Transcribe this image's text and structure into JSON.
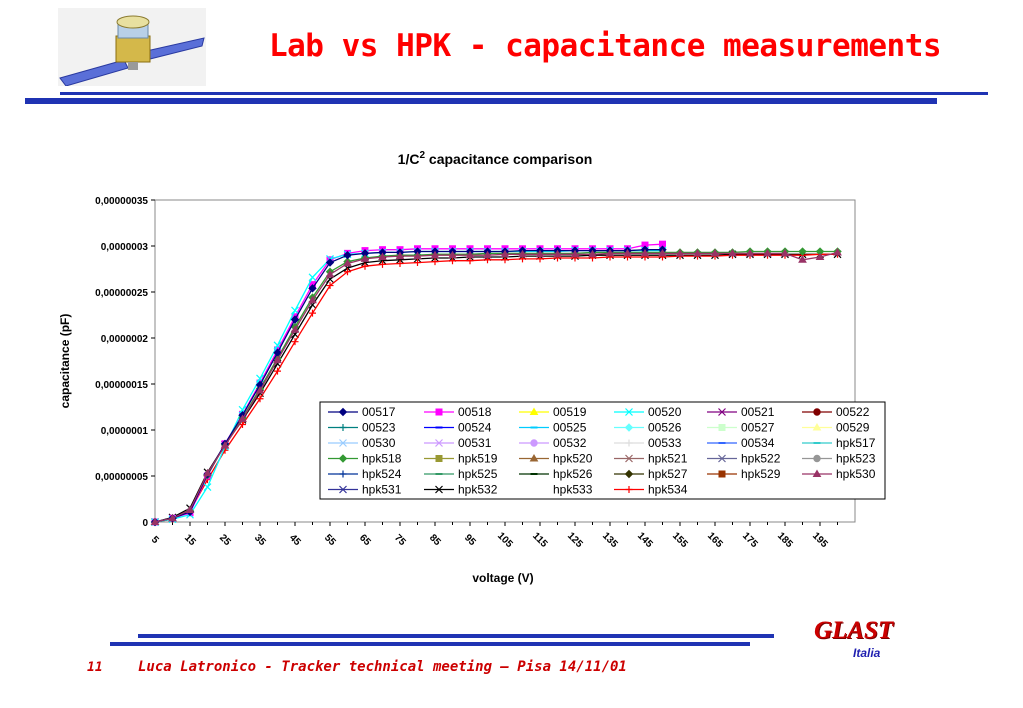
{
  "slide": {
    "title": "Lab vs HPK - capacitance measurements",
    "page_number": "11",
    "footer": "Luca Latronico - Tracker technical meeting – Pisa 14/11/01",
    "logo_main": "GLAST",
    "logo_sub": "Italia",
    "satellite_icon": "satellite-icon",
    "colors": {
      "title": "#ff0000",
      "rule": "#1f33b3",
      "footer": "#cc0000",
      "logo_sub": "#1f1fb0"
    }
  },
  "chart_data": {
    "type": "line",
    "title": "1/C",
    "title_superscript": "2",
    "title_suffix": " capacitance comparison",
    "xlabel": "voltage (V)",
    "ylabel": "capacitance (pF)",
    "x_tick_labels": [
      "5",
      "15",
      "25",
      "35",
      "45",
      "55",
      "65",
      "75",
      "85",
      "95",
      "105",
      "115",
      "125",
      "135",
      "145",
      "155",
      "165",
      "175",
      "185",
      "195"
    ],
    "y_tick_labels": [
      "0",
      "0,00000005",
      "0,0000001",
      "0,00000015",
      "0,0000002",
      "0,00000025",
      "0,0000003",
      "0,00000035"
    ],
    "xlim": [
      5,
      205
    ],
    "ylim": [
      0,
      3.5e-07
    ],
    "grid": false,
    "legend_position": "bottom-right, inside plot",
    "legend_columns": 6,
    "series": [
      {
        "name": "00517",
        "color": "#000080",
        "marker": "diamond",
        "filled": true,
        "end": 150
      },
      {
        "name": "00518",
        "color": "#ff00ff",
        "marker": "square",
        "filled": true,
        "end": 150
      },
      {
        "name": "00519",
        "color": "#ffff00",
        "marker": "triangle",
        "filled": true,
        "end": 150
      },
      {
        "name": "00520",
        "color": "#00ffff",
        "marker": "x",
        "filled": false,
        "end": 150
      },
      {
        "name": "00521",
        "color": "#800080",
        "marker": "x",
        "filled": false,
        "end": 150
      },
      {
        "name": "00522",
        "color": "#800000",
        "marker": "circle",
        "filled": true,
        "end": 200
      },
      {
        "name": "00523",
        "color": "#008080",
        "marker": "plus",
        "filled": false,
        "end": 200
      },
      {
        "name": "00524",
        "color": "#0000ff",
        "marker": "dash",
        "filled": false,
        "end": 200
      },
      {
        "name": "00525",
        "color": "#00ccff",
        "marker": "dash",
        "filled": false,
        "end": 200
      },
      {
        "name": "00526",
        "color": "#66ffff",
        "marker": "diamond",
        "filled": true,
        "end": 200
      },
      {
        "name": "00527",
        "color": "#ccffcc",
        "marker": "square",
        "filled": true,
        "end": 200
      },
      {
        "name": "00529",
        "color": "#ffff99",
        "marker": "triangle",
        "filled": true,
        "end": 200
      },
      {
        "name": "00530",
        "color": "#99ccff",
        "marker": "x",
        "filled": false,
        "end": 200
      },
      {
        "name": "00531",
        "color": "#cc99ff",
        "marker": "x",
        "filled": false,
        "end": 200
      },
      {
        "name": "00532",
        "color": "#cc99ff",
        "marker": "circle",
        "filled": true,
        "end": 200
      },
      {
        "name": "00533",
        "color": "#dddddd",
        "marker": "plus",
        "filled": false,
        "end": 200
      },
      {
        "name": "00534",
        "color": "#3366ff",
        "marker": "dash",
        "filled": false,
        "end": 200
      },
      {
        "name": "hpk517",
        "color": "#33cccc",
        "marker": "dash",
        "filled": false,
        "end": 200
      },
      {
        "name": "hpk518",
        "color": "#339933",
        "marker": "diamond",
        "filled": true,
        "end": 200
      },
      {
        "name": "hpk519",
        "color": "#999933",
        "marker": "square",
        "filled": true,
        "end": 200
      },
      {
        "name": "hpk520",
        "color": "#996633",
        "marker": "triangle",
        "filled": true,
        "end": 200
      },
      {
        "name": "hpk521",
        "color": "#996666",
        "marker": "x",
        "filled": false,
        "end": 200
      },
      {
        "name": "hpk522",
        "color": "#666699",
        "marker": "x",
        "filled": false,
        "end": 200
      },
      {
        "name": "hpk523",
        "color": "#969696",
        "marker": "circle",
        "filled": true,
        "end": 200
      },
      {
        "name": "hpk524",
        "color": "#003399",
        "marker": "plus",
        "filled": false,
        "end": 200
      },
      {
        "name": "hpk525",
        "color": "#339966",
        "marker": "dash",
        "filled": false,
        "end": 200
      },
      {
        "name": "hpk526",
        "color": "#003300",
        "marker": "dash",
        "filled": false,
        "end": 200
      },
      {
        "name": "hpk527",
        "color": "#333300",
        "marker": "diamond",
        "filled": true,
        "end": 200
      },
      {
        "name": "hpk529",
        "color": "#993300",
        "marker": "square",
        "filled": true,
        "end": 200
      },
      {
        "name": "hpk530",
        "color": "#993366",
        "marker": "triangle",
        "filled": true,
        "end": 200
      },
      {
        "name": "hpk531",
        "color": "#333399",
        "marker": "x",
        "filled": false,
        "end": 200
      },
      {
        "name": "hpk532",
        "color": "#000000",
        "marker": "x",
        "filled": false,
        "end": 200
      },
      {
        "name": "hpk533",
        "color": "#ffffff",
        "marker": "none",
        "filled": false,
        "end": 200
      },
      {
        "name": "hpk534",
        "color": "#ff0000",
        "marker": "plus",
        "filled": false,
        "end": 200
      }
    ],
    "shown_series": [
      {
        "name": "hpk532",
        "x": [
          5,
          10,
          15,
          20,
          25,
          30,
          35,
          40,
          45,
          50,
          55,
          60,
          65,
          70,
          75,
          80,
          85,
          90,
          95,
          100,
          105,
          110,
          115,
          120,
          125,
          130,
          135,
          140,
          145,
          150,
          155,
          160,
          165,
          170,
          175,
          180,
          185,
          190,
          195,
          200
        ],
        "y": [
          0,
          5e-09,
          1.5e-08,
          5.4e-08,
          8.4e-08,
          1.11e-07,
          1.4e-07,
          1.72e-07,
          2.04e-07,
          2.36e-07,
          2.64e-07,
          2.76e-07,
          2.82e-07,
          2.84e-07,
          2.85e-07,
          2.86e-07,
          2.87e-07,
          2.87e-07,
          2.88e-07,
          2.88e-07,
          2.88e-07,
          2.89e-07,
          2.89e-07,
          2.89e-07,
          2.89e-07,
          2.9e-07,
          2.9e-07,
          2.9e-07,
          2.9e-07,
          2.9e-07,
          2.9e-07,
          2.9e-07,
          2.9e-07,
          2.91e-07,
          2.91e-07,
          2.91e-07,
          2.91e-07,
          2.91e-07,
          2.91e-07,
          2.91e-07
        ]
      },
      {
        "name": "hpk534",
        "x": [
          5,
          10,
          15,
          20,
          25,
          30,
          35,
          40,
          45,
          50,
          55,
          60,
          65,
          70,
          75,
          80,
          85,
          90,
          95,
          100,
          105,
          110,
          115,
          120,
          125,
          130,
          135,
          140,
          145,
          150,
          155,
          160,
          165,
          170,
          175,
          180,
          185,
          190,
          195,
          200
        ],
        "y": [
          0,
          3e-09,
          1.2e-08,
          4.6e-08,
          7.8e-08,
          1.06e-07,
          1.34e-07,
          1.64e-07,
          1.96e-07,
          2.27e-07,
          2.57e-07,
          2.72e-07,
          2.78e-07,
          2.8e-07,
          2.81e-07,
          2.82e-07,
          2.83e-07,
          2.84e-07,
          2.84e-07,
          2.85e-07,
          2.85e-07,
          2.86e-07,
          2.86e-07,
          2.87e-07,
          2.87e-07,
          2.87e-07,
          2.88e-07,
          2.88e-07,
          2.88e-07,
          2.88e-07,
          2.89e-07,
          2.89e-07,
          2.89e-07,
          2.9e-07,
          2.9e-07,
          2.9e-07,
          2.9e-07,
          2.9e-07,
          2.91e-07,
          2.91e-07
        ]
      },
      {
        "name": "00518",
        "x": [
          5,
          10,
          15,
          20,
          25,
          30,
          35,
          40,
          45,
          50,
          55,
          60,
          65,
          70,
          75,
          80,
          85,
          90,
          95,
          100,
          105,
          110,
          115,
          120,
          125,
          130,
          135,
          140,
          145,
          150
        ],
        "y": [
          0,
          4e-09,
          1e-08,
          5e-08,
          8.5e-08,
          1.17e-07,
          1.51e-07,
          1.87e-07,
          2.23e-07,
          2.58e-07,
          2.85e-07,
          2.92e-07,
          2.95e-07,
          2.96e-07,
          2.96e-07,
          2.97e-07,
          2.97e-07,
          2.97e-07,
          2.97e-07,
          2.97e-07,
          2.97e-07,
          2.97e-07,
          2.97e-07,
          2.97e-07,
          2.97e-07,
          2.97e-07,
          2.97e-07,
          2.97e-07,
          3.01e-07,
          3.02e-07
        ]
      },
      {
        "name": "00520",
        "x": [
          5,
          10,
          15,
          20,
          25,
          30,
          35,
          40,
          45,
          50,
          55,
          60,
          65,
          70,
          75,
          80,
          85,
          90,
          95,
          100,
          105,
          110,
          115,
          120,
          125,
          130,
          135,
          140,
          145,
          150
        ],
        "y": [
          0,
          3e-09,
          8e-09,
          3.8e-08,
          8.2e-08,
          1.22e-07,
          1.56e-07,
          1.92e-07,
          2.3e-07,
          2.66e-07,
          2.86e-07,
          2.91e-07,
          2.92e-07,
          2.93e-07,
          2.93e-07,
          2.94e-07,
          2.94e-07,
          2.94e-07,
          2.94e-07,
          2.94e-07,
          2.94e-07,
          2.94e-07,
          2.94e-07,
          2.94e-07,
          2.95e-07,
          2.95e-07,
          2.95e-07,
          2.95e-07,
          2.95e-07,
          2.95e-07
        ]
      },
      {
        "name": "hpk518",
        "x": [
          5,
          10,
          15,
          20,
          25,
          30,
          35,
          40,
          45,
          50,
          55,
          60,
          65,
          70,
          75,
          80,
          85,
          90,
          95,
          100,
          105,
          110,
          115,
          120,
          125,
          130,
          135,
          140,
          145,
          150,
          155,
          160,
          165,
          170,
          175,
          180,
          185,
          190,
          195,
          200
        ],
        "y": [
          0,
          4e-09,
          1.2e-08,
          5.1e-08,
          8.4e-08,
          1.13e-07,
          1.45e-07,
          1.78e-07,
          2.12e-07,
          2.44e-07,
          2.72e-07,
          2.83e-07,
          2.87e-07,
          2.89e-07,
          2.9e-07,
          2.9e-07,
          2.91e-07,
          2.91e-07,
          2.91e-07,
          2.92e-07,
          2.92e-07,
          2.92e-07,
          2.92e-07,
          2.92e-07,
          2.92e-07,
          2.93e-07,
          2.93e-07,
          2.93e-07,
          2.93e-07,
          2.93e-07,
          2.93e-07,
          2.93e-07,
          2.93e-07,
          2.93e-07,
          2.94e-07,
          2.94e-07,
          2.94e-07,
          2.94e-07,
          2.94e-07,
          2.94e-07
        ]
      },
      {
        "name": "00517",
        "x": [
          5,
          10,
          15,
          20,
          25,
          30,
          35,
          40,
          45,
          50,
          55,
          60,
          65,
          70,
          75,
          80,
          85,
          90,
          95,
          100,
          105,
          110,
          115,
          120,
          125,
          130,
          135,
          140,
          145,
          150
        ],
        "y": [
          0,
          4e-09,
          1.1e-08,
          5.2e-08,
          8.5e-08,
          1.16e-07,
          1.49e-07,
          1.84e-07,
          2.2e-07,
          2.54e-07,
          2.82e-07,
          2.9e-07,
          2.92e-07,
          2.93e-07,
          2.93e-07,
          2.94e-07,
          2.94e-07,
          2.94e-07,
          2.94e-07,
          2.94e-07,
          2.94e-07,
          2.95e-07,
          2.95e-07,
          2.95e-07,
          2.95e-07,
          2.95e-07,
          2.95e-07,
          2.95e-07,
          2.96e-07,
          2.96e-07
        ]
      },
      {
        "name": "hpk530",
        "x": [
          5,
          10,
          15,
          20,
          25,
          30,
          35,
          40,
          45,
          50,
          55,
          60,
          65,
          70,
          75,
          80,
          85,
          90,
          95,
          100,
          105,
          110,
          115,
          120,
          125,
          130,
          135,
          140,
          145,
          150,
          155,
          160,
          165,
          170,
          175,
          180,
          185,
          190,
          195,
          200
        ],
        "y": [
          0,
          4e-09,
          1.3e-08,
          5.3e-08,
          8.3e-08,
          1.12e-07,
          1.43e-07,
          1.76e-07,
          2.09e-07,
          2.41e-07,
          2.69e-07,
          2.81e-07,
          2.86e-07,
          2.88e-07,
          2.89e-07,
          2.89e-07,
          2.9e-07,
          2.9e-07,
          2.9e-07,
          2.9e-07,
          2.91e-07,
          2.91e-07,
          2.91e-07,
          2.91e-07,
          2.91e-07,
          2.91e-07,
          2.92e-07,
          2.92e-07,
          2.92e-07,
          2.92e-07,
          2.92e-07,
          2.92e-07,
          2.92e-07,
          2.92e-07,
          2.92e-07,
          2.92e-07,
          2.92e-07,
          2.85e-07,
          2.88e-07,
          2.93e-07
        ]
      }
    ]
  }
}
